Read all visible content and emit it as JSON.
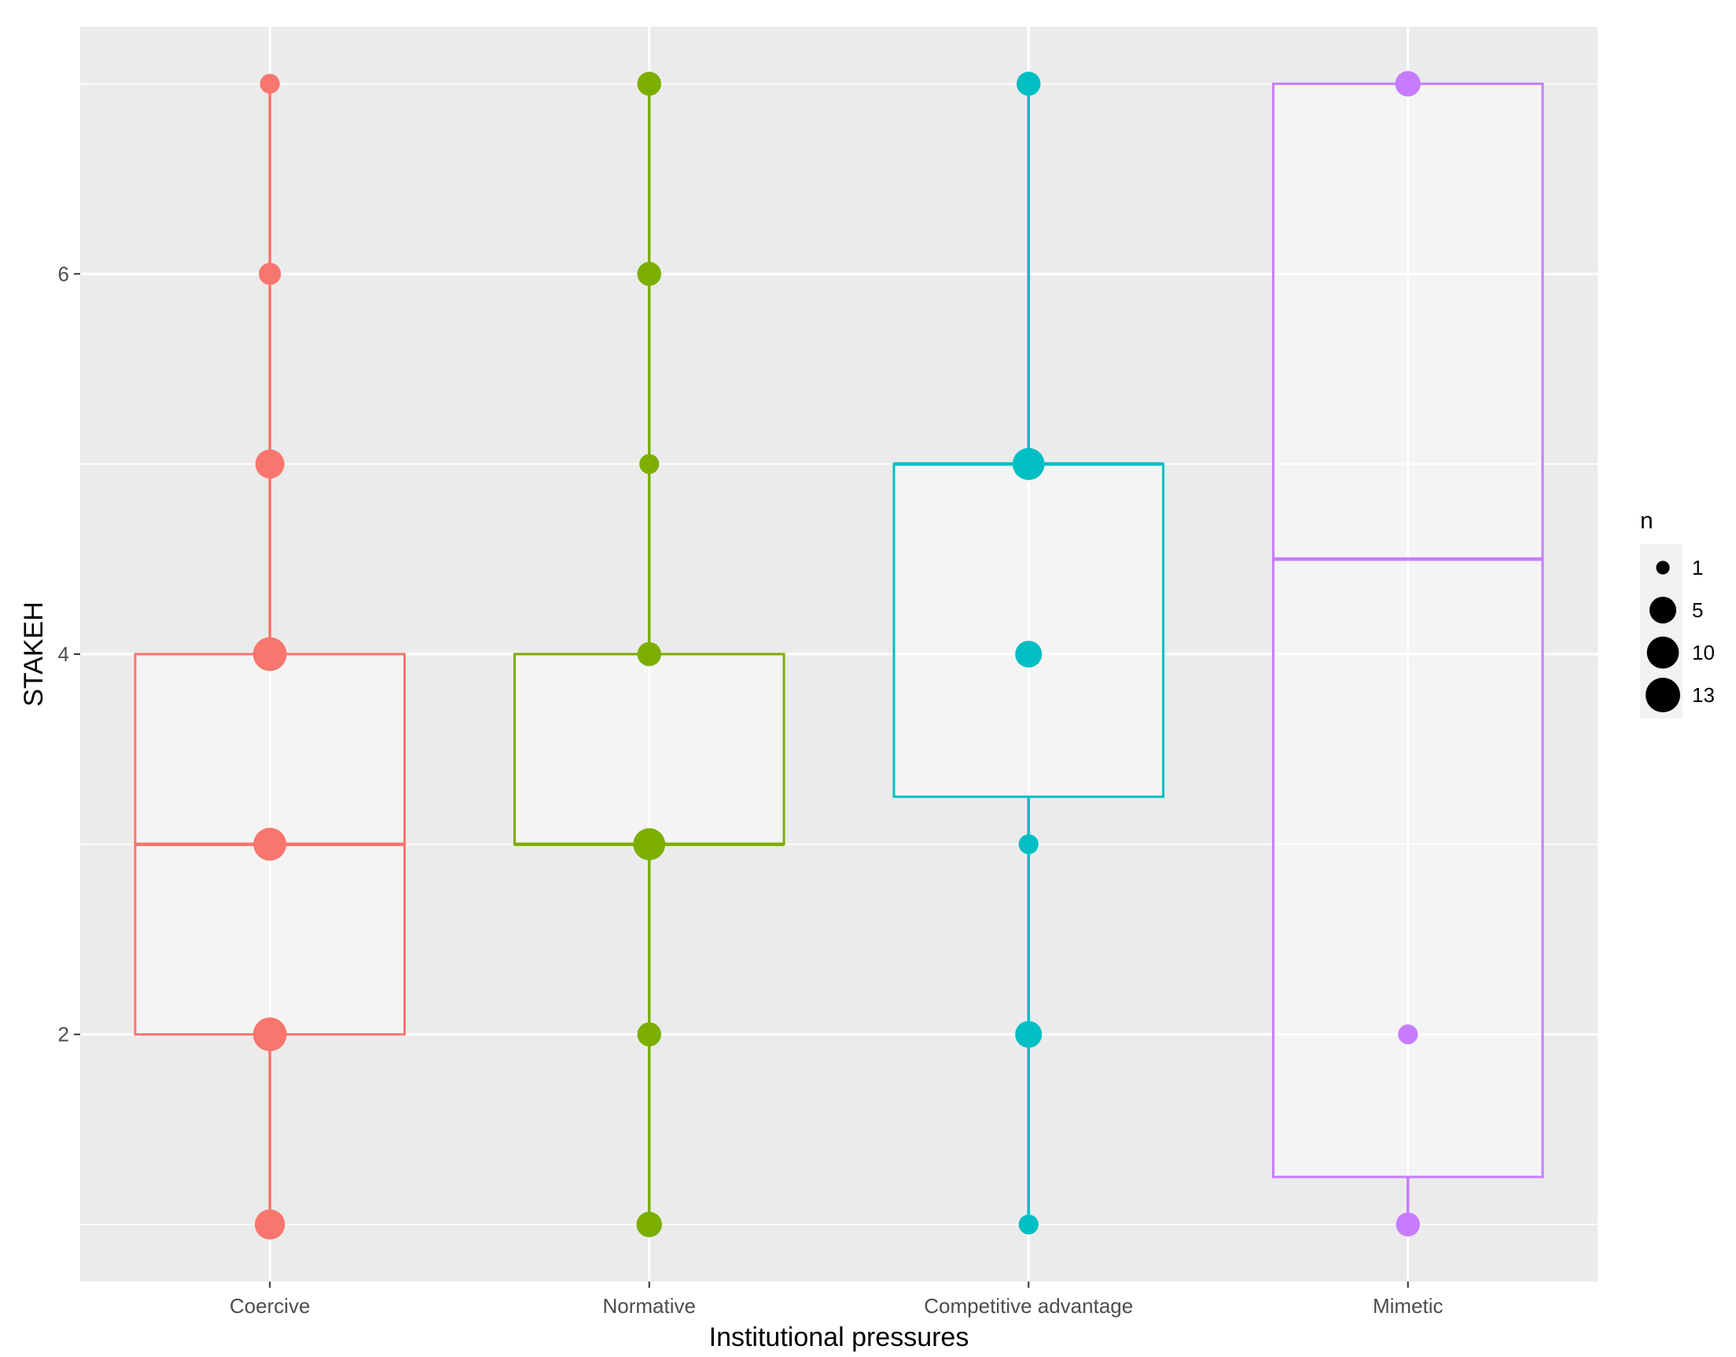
{
  "chart_data": {
    "type": "boxplot",
    "title": "",
    "xlabel": "Institutional pressures",
    "ylabel": "STAKEH",
    "ylim": [
      0.7,
      7.3
    ],
    "y_ticks": [
      2,
      4,
      6
    ],
    "grid": true,
    "categories": [
      "Coercive",
      "Normative",
      "Competitive advantage",
      "Mimetic"
    ],
    "colors": {
      "Coercive": "#F8766D",
      "Normative": "#7CAE00",
      "Competitive advantage": "#00BFC4",
      "Mimetic": "#C77CFF"
    },
    "boxes": [
      {
        "category": "Coercive",
        "min": 1,
        "q1": 2,
        "median": 3,
        "q3": 4,
        "max": 7
      },
      {
        "category": "Normative",
        "min": 1,
        "q1": 3,
        "median": 3,
        "q3": 4,
        "max": 7
      },
      {
        "category": "Competitive advantage",
        "min": 1,
        "q1": 3.25,
        "median": 5,
        "q3": 5,
        "max": 7
      },
      {
        "category": "Mimetic",
        "min": 1,
        "q1": 1.25,
        "median": 4.5,
        "q3": 7,
        "max": 7
      }
    ],
    "points": [
      {
        "category": "Coercive",
        "y": 1,
        "n": 8
      },
      {
        "category": "Coercive",
        "y": 2,
        "n": 12
      },
      {
        "category": "Coercive",
        "y": 3,
        "n": 11
      },
      {
        "category": "Coercive",
        "y": 4,
        "n": 12
      },
      {
        "category": "Coercive",
        "y": 5,
        "n": 7
      },
      {
        "category": "Coercive",
        "y": 6,
        "n": 2
      },
      {
        "category": "Coercive",
        "y": 7,
        "n": 1
      },
      {
        "category": "Normative",
        "y": 1,
        "n": 4
      },
      {
        "category": "Normative",
        "y": 2,
        "n": 3
      },
      {
        "category": "Normative",
        "y": 3,
        "n": 10
      },
      {
        "category": "Normative",
        "y": 4,
        "n": 3
      },
      {
        "category": "Normative",
        "y": 5,
        "n": 1
      },
      {
        "category": "Normative",
        "y": 6,
        "n": 3
      },
      {
        "category": "Normative",
        "y": 7,
        "n": 3
      },
      {
        "category": "Competitive advantage",
        "y": 1,
        "n": 1
      },
      {
        "category": "Competitive advantage",
        "y": 2,
        "n": 5
      },
      {
        "category": "Competitive advantage",
        "y": 3,
        "n": 1
      },
      {
        "category": "Competitive advantage",
        "y": 4,
        "n": 5
      },
      {
        "category": "Competitive advantage",
        "y": 5,
        "n": 10
      },
      {
        "category": "Competitive advantage",
        "y": 7,
        "n": 3
      },
      {
        "category": "Mimetic",
        "y": 1,
        "n": 3
      },
      {
        "category": "Mimetic",
        "y": 2,
        "n": 1
      },
      {
        "category": "Mimetic",
        "y": 7,
        "n": 4
      }
    ],
    "legend": {
      "title": "n",
      "position": "right",
      "entries": [
        {
          "label": "1",
          "n": 1
        },
        {
          "label": "5",
          "n": 5
        },
        {
          "label": "10",
          "n": 10
        },
        {
          "label": "13",
          "n": 13
        }
      ]
    }
  }
}
